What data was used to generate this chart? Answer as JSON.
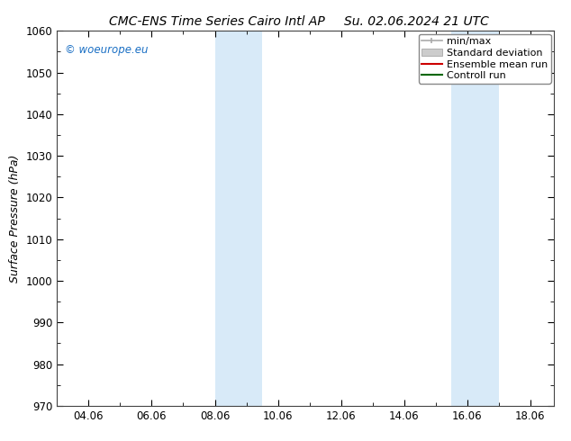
{
  "title_left": "CMC-ENS Time Series Cairo Intl AP",
  "title_right": "Su. 02.06.2024 21 UTC",
  "ylabel": "Surface Pressure (hPa)",
  "ylim": [
    970,
    1060
  ],
  "yticks": [
    970,
    980,
    990,
    1000,
    1010,
    1020,
    1030,
    1040,
    1050,
    1060
  ],
  "xtick_labels": [
    "04.06",
    "06.06",
    "08.06",
    "10.06",
    "12.06",
    "14.06",
    "16.06",
    "18.06"
  ],
  "xtick_positions": [
    4,
    6,
    8,
    10,
    12,
    14,
    16,
    18
  ],
  "xlim": [
    3.0,
    18.75
  ],
  "copyright_text": "© woeurope.eu",
  "copyright_color": "#1a6fc4",
  "background_color": "#ffffff",
  "plot_bg_color": "#ffffff",
  "band_color": "#d8eaf8",
  "bands": [
    {
      "start": 8.0,
      "end": 9.5
    },
    {
      "start": 15.5,
      "end": 17.0
    }
  ],
  "legend_items": [
    {
      "label": "min/max",
      "color": "#aaaaaa",
      "lw": 1.2
    },
    {
      "label": "Standard deviation",
      "color": "#cccccc",
      "lw": 7
    },
    {
      "label": "Ensemble mean run",
      "color": "#cc0000",
      "lw": 1.5
    },
    {
      "label": "Controll run",
      "color": "#006600",
      "lw": 1.5
    }
  ],
  "title_fontsize": 10,
  "tick_fontsize": 8.5,
  "ylabel_fontsize": 9,
  "legend_fontsize": 8
}
